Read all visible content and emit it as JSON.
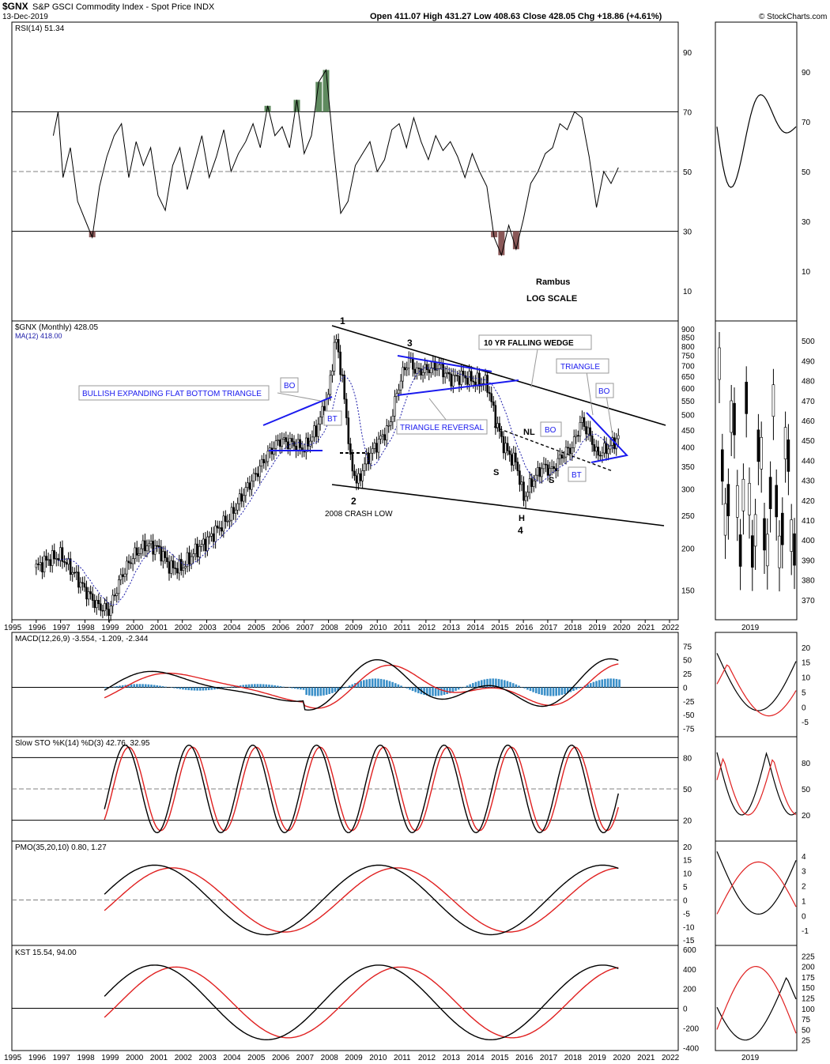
{
  "header": {
    "symbol": "$GNX",
    "description": "S&P GSCI Commodity Index - Spot Price INDX",
    "date": "13-Dec-2019",
    "quote": "Open 411.07  High 431.27  Low 408.63  Close 428.05  Chg +18.86 (+4.61%)",
    "quote_parts": {
      "open_label": "Open",
      "open": "411.07",
      "high_label": "High",
      "high": "431.27",
      "low_label": "Low",
      "low": "408.63",
      "close_label": "Close",
      "close": "428.05",
      "chg_label": "Chg",
      "chg": "+18.86 (+4.61%)"
    },
    "copyright": "© StockCharts.com"
  },
  "colors": {
    "price": "#000000",
    "ma": "#1a1aa8",
    "signal": "#e02020",
    "hist": "#3a8fc8",
    "overbought_fill": "#5f8a5f",
    "oversold_fill": "#8a5858",
    "blue_lines": "#1a1aee",
    "grid": "#000000",
    "mid_dash": "#808080"
  },
  "chart_data": [
    {
      "panel": "rsi",
      "type": "line",
      "title": "RSI(14) 51.34",
      "label": "RSI(14)",
      "value": "51.34",
      "yticks": [
        10,
        30,
        50,
        70,
        90
      ],
      "ylim": [
        0,
        100
      ],
      "levels": [
        30,
        50,
        70
      ],
      "x": [
        1996.7,
        1996.9,
        1997.1,
        1997.4,
        1997.7,
        1998.0,
        1998.3,
        1998.6,
        1998.9,
        1999.2,
        1999.5,
        1999.8,
        2000.1,
        2000.4,
        2000.7,
        2001.0,
        2001.3,
        2001.6,
        2001.9,
        2002.2,
        2002.5,
        2002.8,
        2003.1,
        2003.4,
        2003.7,
        2004.0,
        2004.3,
        2004.6,
        2004.9,
        2005.2,
        2005.5,
        2005.8,
        2006.1,
        2006.4,
        2006.7,
        2007.0,
        2007.3,
        2007.6,
        2007.9,
        2008.2,
        2008.5,
        2008.8,
        2009.1,
        2009.4,
        2009.7,
        2010.0,
        2010.3,
        2010.6,
        2010.9,
        2011.2,
        2011.5,
        2011.8,
        2012.1,
        2012.4,
        2012.7,
        2013.0,
        2013.3,
        2013.6,
        2013.9,
        2014.2,
        2014.5,
        2014.8,
        2015.1,
        2015.4,
        2015.7,
        2016.0,
        2016.3,
        2016.6,
        2016.9,
        2017.2,
        2017.5,
        2017.8,
        2018.1,
        2018.4,
        2018.7,
        2019.0,
        2019.3,
        2019.6,
        2019.9
      ],
      "values": [
        62,
        70,
        48,
        58,
        40,
        34,
        28,
        45,
        55,
        62,
        66,
        48,
        60,
        52,
        58,
        42,
        37,
        52,
        58,
        44,
        53,
        62,
        48,
        55,
        64,
        50,
        56,
        60,
        66,
        58,
        72,
        62,
        65,
        58,
        74,
        56,
        62,
        80,
        84,
        58,
        36,
        40,
        52,
        56,
        60,
        50,
        54,
        64,
        66,
        58,
        68,
        60,
        54,
        62,
        57,
        60,
        55,
        48,
        56,
        50,
        45,
        28,
        22,
        32,
        24,
        34,
        46,
        50,
        56,
        58,
        66,
        64,
        70,
        68,
        55,
        38,
        50,
        46,
        51.34
      ]
    },
    {
      "panel": "price",
      "type": "candlestick",
      "title": "$GNX (Monthly) 428.05",
      "label": "$GNX (Monthly)",
      "value": "428.05",
      "ma_label": "MA(12) 418.00",
      "scale": "log",
      "yticks": [
        150,
        200,
        250,
        300,
        350,
        400,
        450,
        500,
        550,
        600,
        650,
        700,
        750,
        800,
        850,
        900
      ],
      "xticks": [
        1995,
        1996,
        1997,
        1998,
        1999,
        2000,
        2001,
        2002,
        2003,
        2004,
        2005,
        2006,
        2007,
        2008,
        2009,
        2010,
        2011,
        2012,
        2013,
        2014,
        2015,
        2016,
        2017,
        2018,
        2019,
        2020,
        2021,
        2022
      ],
      "ylim": [
        125,
        920
      ],
      "x": [
        1996.0,
        1996.5,
        1997.0,
        1997.5,
        1998.0,
        1998.5,
        1999.0,
        1999.5,
        2000.0,
        2000.5,
        2001.0,
        2001.5,
        2002.0,
        2002.5,
        2003.0,
        2003.5,
        2004.0,
        2004.5,
        2005.0,
        2005.5,
        2006.0,
        2006.5,
        2007.0,
        2007.5,
        2008.0,
        2008.3,
        2008.6,
        2008.9,
        2009.2,
        2009.5,
        2010.0,
        2010.5,
        2011.0,
        2011.3,
        2011.6,
        2012.0,
        2012.5,
        2013.0,
        2013.5,
        2014.0,
        2014.5,
        2014.8,
        2015.1,
        2015.4,
        2015.7,
        2016.0,
        2016.4,
        2016.8,
        2017.2,
        2017.6,
        2018.0,
        2018.4,
        2018.8,
        2019.0,
        2019.3,
        2019.6,
        2019.9
      ],
      "values": [
        175,
        185,
        190,
        170,
        150,
        135,
        130,
        165,
        190,
        205,
        200,
        175,
        175,
        195,
        210,
        230,
        250,
        290,
        330,
        380,
        420,
        410,
        395,
        450,
        570,
        850,
        600,
        360,
        310,
        360,
        410,
        460,
        650,
        730,
        670,
        680,
        700,
        640,
        650,
        630,
        620,
        500,
        420,
        380,
        360,
        280,
        320,
        350,
        340,
        380,
        400,
        480,
        420,
        380,
        390,
        405,
        428.05
      ]
    },
    {
      "panel": "macd",
      "type": "line",
      "title": "MACD(12,26,9) -3.554, -1.209, -2.344",
      "label": "MACD(12,26,9)",
      "values_text": [
        "-3.554",
        "-1.209",
        "-2.344"
      ],
      "yticks": [
        -75,
        -50,
        -25,
        0,
        25,
        50,
        75
      ],
      "ylim": [
        -90,
        100
      ]
    },
    {
      "panel": "sto",
      "type": "line",
      "title": "Slow STO %K(14) %D(3) 42.76, 32.95",
      "label": "Slow STO %K(14) %D(3)",
      "values_text": [
        "42.76",
        "32.95"
      ],
      "yticks": [
        20,
        50,
        80
      ],
      "ylim": [
        0,
        100
      ]
    },
    {
      "panel": "pmo",
      "type": "line",
      "title": "PMO(35,20,10) 0.80, 1.27",
      "label": "PMO(35,20,10)",
      "values_text": [
        "0.80",
        "1.27"
      ],
      "yticks": [
        -15,
        -10,
        -5,
        0,
        5,
        10,
        15,
        20
      ],
      "ylim": [
        -17,
        22
      ]
    },
    {
      "panel": "kst",
      "type": "line",
      "title": "KST 15.54, 94.00",
      "label": "KST",
      "values_text": [
        "15.54",
        "94.00"
      ],
      "yticks": [
        -400,
        -200,
        0,
        200,
        400,
        600
      ],
      "ylim": [
        -430,
        640
      ]
    }
  ],
  "side_panels": {
    "rsi_ticks": [
      "90",
      "70",
      "50",
      "30",
      "10"
    ],
    "price_ticks": [
      "500",
      "490",
      "480",
      "470",
      "460",
      "450",
      "440",
      "430",
      "420",
      "410",
      "400",
      "390",
      "380",
      "370"
    ],
    "macd_ticks": [
      "20",
      "15",
      "10",
      "5",
      "0",
      "-5"
    ],
    "sto_ticks": [
      "80",
      "50",
      "20"
    ],
    "pmo_ticks": [
      "4",
      "3",
      "2",
      "1",
      "0",
      "-1"
    ],
    "kst_ticks": [
      "225",
      "200",
      "175",
      "150",
      "125",
      "100",
      "75",
      "50",
      "25"
    ],
    "year_label": "2019"
  },
  "annotations": {
    "rambus": "Rambus",
    "log_scale": "LOG SCALE",
    "p1": "1",
    "p2": "2",
    "p3": "3",
    "p4": "4",
    "crash_low": "2008 CRASH LOW",
    "falling_wedge": "10 YR FALLING WEDGE",
    "triangle": "TRIANGLE",
    "bo1": "BO",
    "bo2": "BO",
    "bo3": "BO",
    "bt1": "BT",
    "bt2": "BT",
    "bullish": "BULLISH EXPANDING FLAT BOTTOM TRIANGLE",
    "triangle_reversal": "TRIANGLE REVERSAL",
    "s1": "S",
    "s2": "S",
    "h": "H",
    "nl": "NL"
  }
}
